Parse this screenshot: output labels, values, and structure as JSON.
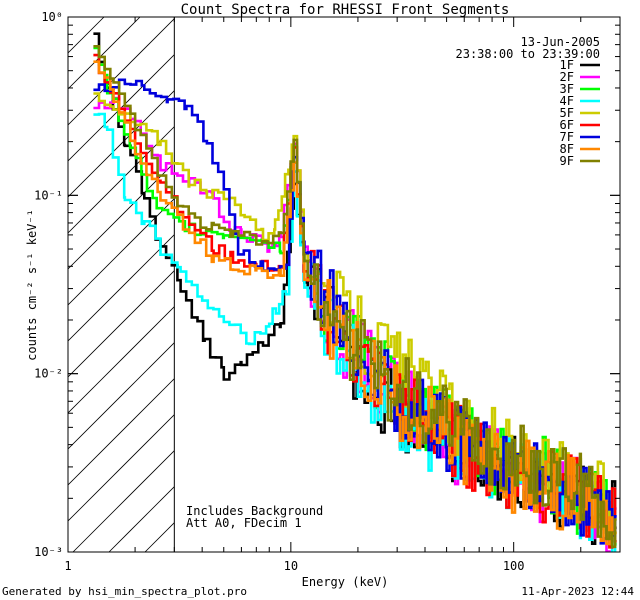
{
  "chart_data": {
    "type": "line",
    "title": "Count Spectra for RHESSI Front Segments",
    "xlabel": "Energy (keV)",
    "ylabel": "counts cm⁻² s⁻¹ keV⁻¹",
    "xscale": "log",
    "yscale": "log",
    "xlim": [
      1,
      300
    ],
    "ylim": [
      0.001,
      1
    ],
    "x_ticks": [
      {
        "v": 1,
        "label": "1"
      },
      {
        "v": 10,
        "label": "10"
      },
      {
        "v": 100,
        "label": "100"
      }
    ],
    "y_ticks": [
      {
        "v": 1,
        "label": "10⁰"
      },
      {
        "v": 0.1,
        "label": "10⁻¹"
      },
      {
        "v": 0.01,
        "label": "10⁻²"
      },
      {
        "v": 0.001,
        "label": "10⁻³"
      }
    ],
    "date": "13-Jun-2005",
    "time_range": "23:38:00 to 23:39:00",
    "annotations": [
      "Includes Background",
      "Att A0, FDecim 1"
    ],
    "shaded_region": {
      "x": [
        1,
        3
      ],
      "pattern": "hatched"
    },
    "series": [
      {
        "name": "1F",
        "color": "#000000",
        "points": [
          [
            1.3,
            0.75
          ],
          [
            1.5,
            0.4
          ],
          [
            1.8,
            0.2
          ],
          [
            2.2,
            0.09
          ],
          [
            2.6,
            0.05
          ],
          [
            3.2,
            0.03
          ],
          [
            4.1,
            0.015
          ],
          [
            5,
            0.01
          ],
          [
            6,
            0.012
          ],
          [
            7.5,
            0.015
          ],
          [
            9,
            0.02
          ],
          [
            10.3,
            0.12
          ],
          [
            11.5,
            0.03
          ],
          [
            15,
            0.02
          ],
          [
            20,
            0.009
          ],
          [
            30,
            0.006
          ],
          [
            50,
            0.004
          ],
          [
            80,
            0.003
          ],
          [
            120,
            0.0025
          ],
          [
            200,
            0.002
          ],
          [
            290,
            0.0015
          ]
        ]
      },
      {
        "name": "2F",
        "color": "#ff00ff",
        "points": [
          [
            1.3,
            0.3
          ],
          [
            1.6,
            0.35
          ],
          [
            2,
            0.25
          ],
          [
            2.6,
            0.15
          ],
          [
            3.5,
            0.12
          ],
          [
            4.5,
            0.1
          ],
          [
            5,
            0.07
          ],
          [
            6,
            0.06
          ],
          [
            7,
            0.055
          ],
          [
            8,
            0.05
          ],
          [
            9,
            0.06
          ],
          [
            10.3,
            0.2
          ],
          [
            11.5,
            0.05
          ],
          [
            15,
            0.02
          ],
          [
            20,
            0.012
          ],
          [
            30,
            0.008
          ],
          [
            50,
            0.004
          ],
          [
            80,
            0.003
          ],
          [
            120,
            0.0025
          ],
          [
            200,
            0.002
          ],
          [
            290,
            0.0015
          ]
        ]
      },
      {
        "name": "3F",
        "color": "#00ff00",
        "points": [
          [
            1.3,
            0.68
          ],
          [
            1.5,
            0.4
          ],
          [
            1.9,
            0.18
          ],
          [
            2.5,
            0.08
          ],
          [
            3.5,
            0.065
          ],
          [
            5,
            0.06
          ],
          [
            6.2,
            0.06
          ],
          [
            7.5,
            0.055
          ],
          [
            9,
            0.05
          ],
          [
            10.3,
            0.19
          ],
          [
            11.5,
            0.04
          ],
          [
            15,
            0.022
          ],
          [
            20,
            0.013
          ],
          [
            30,
            0.008
          ],
          [
            50,
            0.005
          ],
          [
            80,
            0.0035
          ],
          [
            120,
            0.003
          ],
          [
            200,
            0.002
          ],
          [
            290,
            0.0017
          ]
        ]
      },
      {
        "name": "4F",
        "color": "#00ffff",
        "points": [
          [
            1.3,
            0.3
          ],
          [
            1.5,
            0.22
          ],
          [
            1.8,
            0.1
          ],
          [
            2.2,
            0.07
          ],
          [
            2.6,
            0.05
          ],
          [
            3.2,
            0.04
          ],
          [
            4,
            0.025
          ],
          [
            5,
            0.02
          ],
          [
            6.5,
            0.015
          ],
          [
            8,
            0.02
          ],
          [
            9.5,
            0.03
          ],
          [
            10.3,
            0.13
          ],
          [
            11.5,
            0.03
          ],
          [
            15,
            0.017
          ],
          [
            20,
            0.01
          ],
          [
            30,
            0.006
          ],
          [
            50,
            0.004
          ],
          [
            80,
            0.003
          ],
          [
            120,
            0.0023
          ],
          [
            200,
            0.0018
          ],
          [
            290,
            0.0014
          ]
        ]
      },
      {
        "name": "5F",
        "color": "#cccc00",
        "points": [
          [
            1.3,
            0.35
          ],
          [
            1.6,
            0.3
          ],
          [
            2,
            0.25
          ],
          [
            2.6,
            0.2
          ],
          [
            3.5,
            0.12
          ],
          [
            4.2,
            0.1
          ],
          [
            5,
            0.1
          ],
          [
            6.2,
            0.08
          ],
          [
            7.5,
            0.06
          ],
          [
            8.5,
            0.07
          ],
          [
            10.3,
            0.2
          ],
          [
            11.5,
            0.05
          ],
          [
            15,
            0.025
          ],
          [
            20,
            0.017
          ],
          [
            30,
            0.011
          ],
          [
            50,
            0.006
          ],
          [
            80,
            0.004
          ],
          [
            120,
            0.003
          ],
          [
            200,
            0.0022
          ],
          [
            290,
            0.0018
          ]
        ]
      },
      {
        "name": "6F",
        "color": "#ff0000",
        "points": [
          [
            1.3,
            0.6
          ],
          [
            1.6,
            0.35
          ],
          [
            2,
            0.2
          ],
          [
            2.6,
            0.12
          ],
          [
            3.5,
            0.07
          ],
          [
            4.5,
            0.05
          ],
          [
            5.5,
            0.045
          ],
          [
            7,
            0.04
          ],
          [
            9,
            0.04
          ],
          [
            10.3,
            0.18
          ],
          [
            11.5,
            0.035
          ],
          [
            15,
            0.02
          ],
          [
            20,
            0.012
          ],
          [
            30,
            0.007
          ],
          [
            50,
            0.0045
          ],
          [
            80,
            0.003
          ],
          [
            120,
            0.0025
          ],
          [
            200,
            0.002
          ],
          [
            290,
            0.0015
          ]
        ]
      },
      {
        "name": "7F",
        "color": "#0000dd",
        "points": [
          [
            1.3,
            0.4
          ],
          [
            1.6,
            0.42
          ],
          [
            1.8,
            0.45
          ],
          [
            2.2,
            0.4
          ],
          [
            2.8,
            0.35
          ],
          [
            3.4,
            0.3
          ],
          [
            4.2,
            0.2
          ],
          [
            5,
            0.1
          ],
          [
            5.8,
            0.05
          ],
          [
            7.5,
            0.04
          ],
          [
            9.5,
            0.04
          ],
          [
            10.3,
            0.17
          ],
          [
            11.5,
            0.05
          ],
          [
            15,
            0.025
          ],
          [
            20,
            0.013
          ],
          [
            30,
            0.007
          ],
          [
            50,
            0.0045
          ],
          [
            80,
            0.003
          ],
          [
            120,
            0.0025
          ],
          [
            200,
            0.002
          ],
          [
            290,
            0.0015
          ]
        ]
      },
      {
        "name": "8F",
        "color": "#ff8800",
        "points": [
          [
            1.3,
            0.6
          ],
          [
            1.6,
            0.33
          ],
          [
            2,
            0.18
          ],
          [
            2.6,
            0.1
          ],
          [
            3.5,
            0.06
          ],
          [
            4.5,
            0.045
          ],
          [
            5.5,
            0.04
          ],
          [
            7,
            0.038
          ],
          [
            9,
            0.035
          ],
          [
            10.3,
            0.16
          ],
          [
            11.5,
            0.035
          ],
          [
            15,
            0.02
          ],
          [
            20,
            0.012
          ],
          [
            30,
            0.007
          ],
          [
            50,
            0.0045
          ],
          [
            80,
            0.003
          ],
          [
            120,
            0.0025
          ],
          [
            200,
            0.002
          ],
          [
            290,
            0.0015
          ]
        ]
      },
      {
        "name": "9F",
        "color": "#808000",
        "points": [
          [
            1.3,
            0.65
          ],
          [
            1.6,
            0.4
          ],
          [
            2,
            0.25
          ],
          [
            2.6,
            0.12
          ],
          [
            3.5,
            0.075
          ],
          [
            4.5,
            0.065
          ],
          [
            5.5,
            0.06
          ],
          [
            7,
            0.055
          ],
          [
            9,
            0.06
          ],
          [
            10.3,
            0.19
          ],
          [
            11.5,
            0.04
          ],
          [
            15,
            0.022
          ],
          [
            20,
            0.013
          ],
          [
            30,
            0.008
          ],
          [
            50,
            0.005
          ],
          [
            80,
            0.0035
          ],
          [
            120,
            0.003
          ],
          [
            200,
            0.0022
          ],
          [
            290,
            0.0017
          ]
        ]
      }
    ]
  },
  "footer": {
    "generated_by": "Generated by hsi_min_spectra_plot.pro",
    "timestamp": "11-Apr-2023 12:44"
  }
}
